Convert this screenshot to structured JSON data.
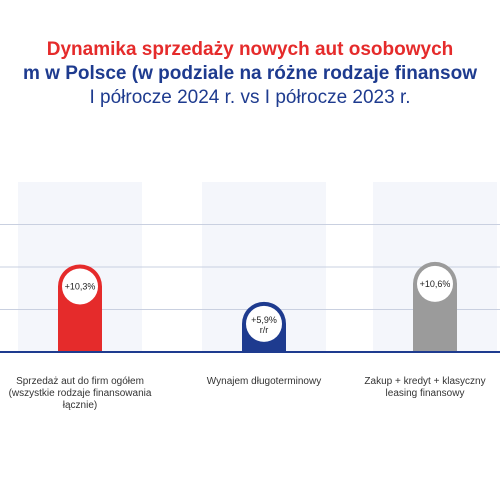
{
  "title": {
    "line1": "Dynamika sprzedaży nowych aut osobowych",
    "line2": "m w Polsce (w podziale na różne rodzaje finansow",
    "line3": "I półrocze 2024 r. vs I półrocze 2023 r."
  },
  "colors": {
    "title_red": "#e52b2b",
    "title_blue": "#1e3b8f",
    "band": "#f4f6fb",
    "gridline": "#c9d0e0",
    "axis": "#1e3b8f"
  },
  "chart_data": {
    "type": "bar",
    "categories": [
      "Sprzedaż aut do firm ogółem (wszystkie rodzaje finansowania łącznie)",
      "Wynajem długoterminowy",
      "Zakup + kredyt + klasyczny leasing finansowy"
    ],
    "values": [
      10.3,
      5.9,
      10.6
    ],
    "data_labels": [
      "+10,3%",
      "+5,9% r/r",
      "+10,6%"
    ],
    "bar_colors": [
      "#e52b2b",
      "#1e3b8f",
      "#9b9b9b"
    ],
    "ylim": [
      0,
      20
    ],
    "grid": true,
    "legend": "none",
    "xlabel": "",
    "ylabel": ""
  }
}
